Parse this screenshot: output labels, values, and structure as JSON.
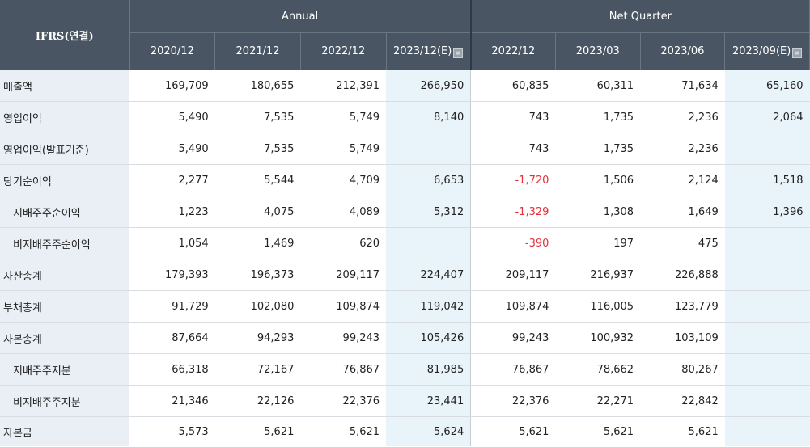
{
  "header": {
    "corner": "IFRS(연결)",
    "group_annual": "Annual",
    "group_quarter": "Net Quarter",
    "periods": [
      "2020/12",
      "2021/12",
      "2022/12",
      "2023/12(E)",
      "2022/12",
      "2023/03",
      "2023/06",
      "2023/09(E)"
    ],
    "estimate_columns": [
      3,
      7
    ],
    "estimate_icon": "estimate-info-icon"
  },
  "colors": {
    "header_bg": "#4a5563",
    "label_bg": "#e9eff5",
    "estimate_bg": "#e9f3fa",
    "negative": "#e5313b"
  },
  "rows": [
    {
      "label": "매출액",
      "sub": false,
      "values": [
        "169,709",
        "180,655",
        "212,391",
        "266,950",
        "60,835",
        "60,311",
        "71,634",
        "65,160"
      ]
    },
    {
      "label": "영업이익",
      "sub": false,
      "values": [
        "5,490",
        "7,535",
        "5,749",
        "8,140",
        "743",
        "1,735",
        "2,236",
        "2,064"
      ]
    },
    {
      "label": "영업이익(발표기준)",
      "sub": false,
      "values": [
        "5,490",
        "7,535",
        "5,749",
        "",
        "743",
        "1,735",
        "2,236",
        ""
      ]
    },
    {
      "label": "당기순이익",
      "sub": false,
      "values": [
        "2,277",
        "5,544",
        "4,709",
        "6,653",
        "-1,720",
        "1,506",
        "2,124",
        "1,518"
      ]
    },
    {
      "label": "지배주주순이익",
      "sub": true,
      "values": [
        "1,223",
        "4,075",
        "4,089",
        "5,312",
        "-1,329",
        "1,308",
        "1,649",
        "1,396"
      ]
    },
    {
      "label": "비지배주주순이익",
      "sub": true,
      "values": [
        "1,054",
        "1,469",
        "620",
        "",
        "-390",
        "197",
        "475",
        ""
      ]
    },
    {
      "label": "자산총계",
      "sub": false,
      "values": [
        "179,393",
        "196,373",
        "209,117",
        "224,407",
        "209,117",
        "216,937",
        "226,888",
        ""
      ]
    },
    {
      "label": "부채총계",
      "sub": false,
      "values": [
        "91,729",
        "102,080",
        "109,874",
        "119,042",
        "109,874",
        "116,005",
        "123,779",
        ""
      ]
    },
    {
      "label": "자본총계",
      "sub": false,
      "values": [
        "87,664",
        "94,293",
        "99,243",
        "105,426",
        "99,243",
        "100,932",
        "103,109",
        ""
      ]
    },
    {
      "label": "지배주주지분",
      "sub": true,
      "values": [
        "66,318",
        "72,167",
        "76,867",
        "81,985",
        "76,867",
        "78,662",
        "80,267",
        ""
      ]
    },
    {
      "label": "비지배주주지분",
      "sub": true,
      "values": [
        "21,346",
        "22,126",
        "22,376",
        "23,441",
        "22,376",
        "22,271",
        "22,842",
        ""
      ]
    },
    {
      "label": "자본금",
      "sub": false,
      "values": [
        "5,573",
        "5,621",
        "5,621",
        "5,624",
        "5,621",
        "5,621",
        "5,621",
        ""
      ]
    }
  ]
}
